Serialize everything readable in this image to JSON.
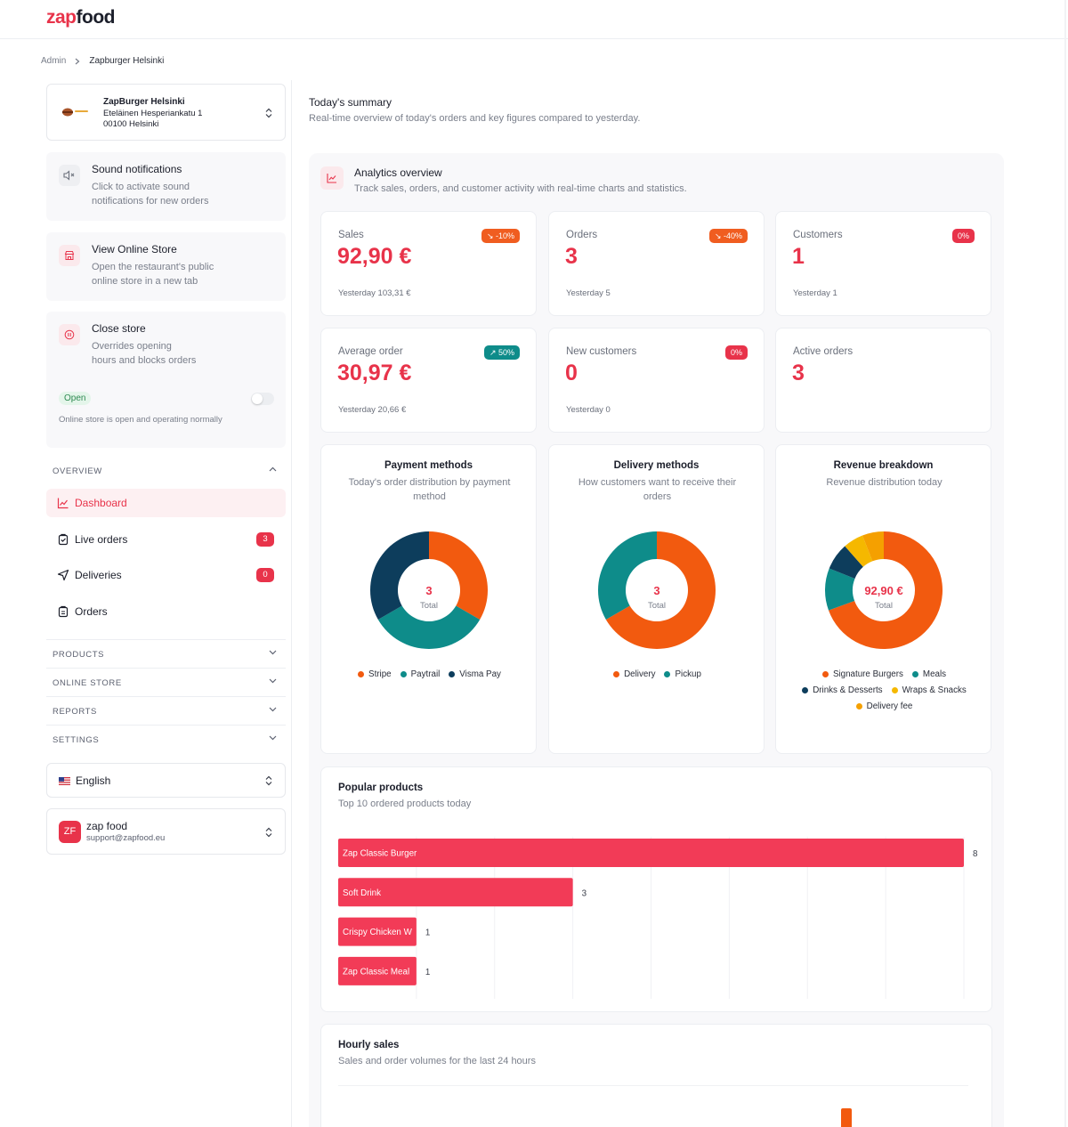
{
  "brand": {
    "name_part1": "zap",
    "name_part2": "food",
    "accent": "#e8334a"
  },
  "breadcrumb": {
    "root": "Admin",
    "current": "Zapburger Helsinki"
  },
  "restaurant": {
    "name": "ZapBurger Helsinki",
    "address_line1": "Eteläinen Hesperiankatu 1",
    "address_line2": "00100 Helsinki"
  },
  "sound": {
    "title": "Sound notifications",
    "desc_line1": "Click to activate sound",
    "desc_line2": "notifications for new orders"
  },
  "online_store": {
    "title": "View Online Store",
    "desc_line1": "Open the restaurant's public",
    "desc_line2": "online store in a new tab"
  },
  "close_store": {
    "title": "Close store",
    "desc_line1": "Overrides opening",
    "desc_line2": "hours and blocks orders",
    "status_badge": "Open",
    "status_text": "Online store is open and operating normally",
    "toggle_on": false
  },
  "nav": {
    "overview_heading": "OVERVIEW",
    "items": [
      {
        "label": "Dashboard",
        "active": true
      },
      {
        "label": "Live orders",
        "badge": "3"
      },
      {
        "label": "Deliveries",
        "badge": "0"
      },
      {
        "label": "Orders"
      }
    ],
    "sections": [
      "PRODUCTS",
      "ONLINE STORE",
      "REPORTS",
      "SETTINGS"
    ]
  },
  "language": {
    "label": "English"
  },
  "account": {
    "initials": "ZF",
    "name": "zap food",
    "email": "support@zapfood.eu"
  },
  "summary": {
    "title": "Today's summary",
    "subtitle": "Real-time overview of today's orders and key figures compared to yesterday."
  },
  "analytics": {
    "title": "Analytics overview",
    "subtitle": "Track sales, orders, and customer activity with real-time charts and statistics."
  },
  "kpis": [
    {
      "label": "Sales",
      "value": "92,90 €",
      "badge": "-10%",
      "trend": "down",
      "yesterday": "Yesterday 103,31 €"
    },
    {
      "label": "Orders",
      "value": "3",
      "badge": "-40%",
      "trend": "down",
      "yesterday": "Yesterday 5"
    },
    {
      "label": "Customers",
      "value": "1",
      "badge": "0%",
      "trend": "flat",
      "yesterday": "Yesterday 1"
    },
    {
      "label": "Average order",
      "value": "30,97 €",
      "badge": "50%",
      "trend": "up",
      "yesterday": "Yesterday 20,66 €"
    },
    {
      "label": "New customers",
      "value": "0",
      "badge": "0%",
      "trend": "flat",
      "yesterday": "Yesterday 0"
    },
    {
      "label": "Active orders",
      "value": "3"
    }
  ],
  "chart_data": [
    {
      "type": "pie",
      "title": "Payment methods",
      "subtitle": "Today's order distribution by payment method",
      "center_value": "3",
      "center_label": "Total",
      "categories": [
        "Stripe",
        "Paytrail",
        "Visma Pay"
      ],
      "values": [
        1,
        1,
        1
      ],
      "colors": [
        "#f25a0f",
        "#0e8c8a",
        "#0d3d5c"
      ]
    },
    {
      "type": "pie",
      "title": "Delivery methods",
      "subtitle": "How customers want to receive their orders",
      "center_value": "3",
      "center_label": "Total",
      "categories": [
        "Delivery",
        "Pickup"
      ],
      "values": [
        2,
        1
      ],
      "colors": [
        "#f25a0f",
        "#0e8c8a"
      ]
    },
    {
      "type": "pie",
      "title": "Revenue breakdown",
      "subtitle": "Revenue distribution today",
      "center_value": "92,90 €",
      "center_label": "Total",
      "categories": [
        "Signature Burgers",
        "Meals",
        "Drinks & Desserts",
        "Wraps & Snacks",
        "Delivery fee"
      ],
      "values": [
        64.5,
        10.8,
        6.9,
        5.2,
        5.5
      ],
      "colors": [
        "#f25a0f",
        "#0e8c8a",
        "#0d3d5c",
        "#f5b800",
        "#f5a000"
      ]
    },
    {
      "type": "bar",
      "orientation": "horizontal",
      "title": "Popular products",
      "subtitle": "Top 10 ordered products today",
      "categories": [
        "Zap Classic Burger",
        "Soft Drink",
        "Crispy Chicken Wrap",
        "Zap Classic Meal"
      ],
      "category_labels": [
        "Zap Classic Burger",
        "Soft Drink",
        "Crispy Chicken W",
        "Zap Classic Meal"
      ],
      "values": [
        8,
        3,
        1,
        1
      ],
      "xlim": [
        0,
        8
      ],
      "color": "#f23b57"
    },
    {
      "type": "bar",
      "title": "Hourly sales",
      "subtitle": "Sales and order volumes for the last 24 hours",
      "color": "#f25a0f"
    }
  ]
}
